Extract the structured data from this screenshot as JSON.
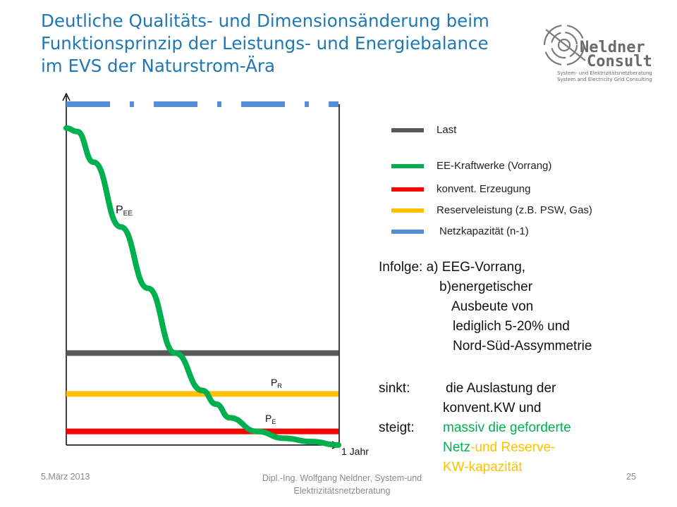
{
  "title": {
    "line1": "Deutliche Qualitäts- und Dimensionsänderung beim",
    "line2": "Funktionsprinzip der Leistungs- und Energiebalance",
    "line3": "im EVS der Naturstrom-Ära"
  },
  "logo": {
    "name_top": "Neldner",
    "name_bottom": "Consult",
    "tagline1": "System- und Elektrizitätsnetzberatung",
    "tagline2": "System and Electricity Grid Consulting"
  },
  "chart_data": {
    "type": "line",
    "xlabel": "1 Jahr",
    "ylabel": "",
    "x": [
      0,
      0.04,
      0.1,
      0.2,
      0.3,
      0.4,
      0.5,
      0.55,
      0.6,
      0.7,
      0.8,
      0.9,
      1.0
    ],
    "series": [
      {
        "name": "Last",
        "color": "#595959",
        "values": [
          0.27,
          0.27,
          0.27,
          0.27,
          0.27,
          0.27,
          0.27,
          0.27,
          0.27,
          0.27,
          0.27,
          0.27,
          0.27
        ]
      },
      {
        "name": "EE-Kraftwerke (Vorrang)",
        "label": "P EE",
        "color": "#00b050",
        "values": [
          0.93,
          0.92,
          0.83,
          0.64,
          0.46,
          0.27,
          0.16,
          0.12,
          0.08,
          0.04,
          0.02,
          0.01,
          0.0
        ]
      },
      {
        "name": "konvent. Erzeugung",
        "label": "PE",
        "color": "#ff0000",
        "values": [
          0.04,
          0.04,
          0.04,
          0.04,
          0.04,
          0.04,
          0.04,
          0.04,
          0.04,
          0.04,
          0.04,
          0.04,
          0.04
        ]
      },
      {
        "name": "Reserveleistung (z.B. PSW, Gas)",
        "label": "PR",
        "color": "#ffc000",
        "values": [
          0.15,
          0.15,
          0.15,
          0.15,
          0.15,
          0.15,
          0.15,
          0.15,
          0.15,
          0.15,
          0.15,
          0.15,
          0.15
        ]
      },
      {
        "name": "Netzkapazität (n-1)",
        "color": "#558ed5",
        "values": [
          1.0,
          1.0,
          1.0,
          1.0,
          1.0,
          1.0,
          1.0,
          1.0,
          1.0,
          1.0,
          1.0,
          1.0,
          1.0
        ]
      }
    ],
    "labels": {
      "p_ee_main": "P",
      "p_ee_sub": "EE",
      "p_r_main": "P",
      "p_r_sub": "R",
      "p_e_main": "P",
      "p_e_sub": "E"
    },
    "ylim": [
      0,
      1
    ],
    "xlim": [
      0,
      1
    ],
    "grid": false
  },
  "legend": {
    "items": [
      {
        "label": "Last",
        "color": "#595959"
      },
      {
        "label": "EE-Kraftwerke (Vorrang)",
        "color": "#00b050"
      },
      {
        "label": "konvent. Erzeugung",
        "color": "#ff0000"
      },
      {
        "label": "Reserveleistung (z.B. PSW, Gas)",
        "color": "#ffc000"
      },
      {
        "label": "Netzkapazität (n-1)",
        "color": "#558ed5"
      }
    ]
  },
  "text_block": {
    "infolge_label": "Infolge:",
    "infolge_a": "a) EEG-Vorrang,",
    "infolge_b1": "b)energetischer",
    "infolge_b2": "Ausbeute von",
    "infolge_b3": "lediglich 5-20% und",
    "infolge_b4": "Nord-Süd-Assymmetrie",
    "sinkt_label": "sinkt:",
    "sinkt_1": "die Auslastung der",
    "sinkt_2": "konvent.KW und",
    "steigt_label": "steigt:",
    "steigt_green": "massiv die geforderte",
    "netz": "Netz",
    "und_reserve": "-und Reserve-",
    "kw_kapazitaet": "KW-kapazität",
    "green": "#00b050",
    "orange": "#ffc000"
  },
  "footer": {
    "date": "5.März 2013",
    "author_line1": "Dipl.-Ing. Wolfgang Neldner, System-und",
    "author_line2": "Elektrizitätsnetzberatung",
    "page": "25"
  }
}
